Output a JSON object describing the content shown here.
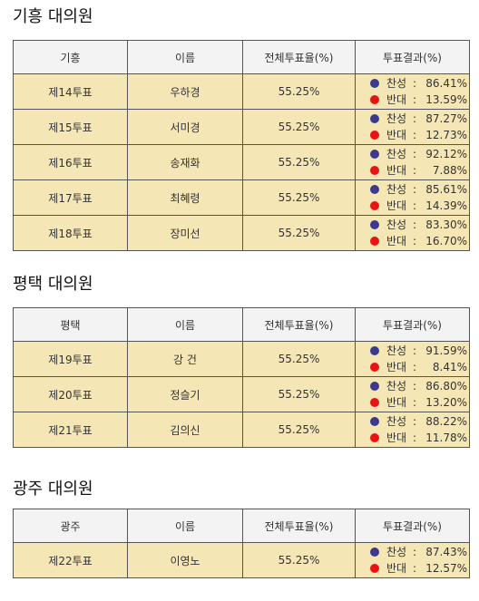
{
  "headers": [
    "",
    "이름",
    "전체투표율(%)",
    "투표결과(%)"
  ],
  "yes_label": "찬성",
  "no_label": "반대",
  "sections": [
    {
      "title": "기흥 대의원",
      "region": "기흥",
      "rows": [
        {
          "no": "제14투표",
          "name": "우하경",
          "turnout": "55.25%",
          "yes": "86.41%",
          "noval": "13.59%"
        },
        {
          "no": "제15투표",
          "name": "서미경",
          "turnout": "55.25%",
          "yes": "87.27%",
          "noval": "12.73%"
        },
        {
          "no": "제16투표",
          "name": "송재화",
          "turnout": "55.25%",
          "yes": "92.12%",
          "noval": "7.88%"
        },
        {
          "no": "제17투표",
          "name": "최혜령",
          "turnout": "55.25%",
          "yes": "85.61%",
          "noval": "14.39%"
        },
        {
          "no": "제18투표",
          "name": "장미선",
          "turnout": "55.25%",
          "yes": "83.30%",
          "noval": "16.70%"
        }
      ]
    },
    {
      "title": "평택 대의원",
      "region": "평택",
      "rows": [
        {
          "no": "제19투표",
          "name": "강 건",
          "turnout": "55.25%",
          "yes": "91.59%",
          "noval": "8.41%"
        },
        {
          "no": "제20투표",
          "name": "정슬기",
          "turnout": "55.25%",
          "yes": "86.80%",
          "noval": "13.20%"
        },
        {
          "no": "제21투표",
          "name": "김의신",
          "turnout": "55.25%",
          "yes": "88.22%",
          "noval": "11.78%"
        }
      ]
    },
    {
      "title": "광주 대의원",
      "region": "광주",
      "rows": [
        {
          "no": "제22투표",
          "name": "이영노",
          "turnout": "55.25%",
          "yes": "87.43%",
          "noval": "12.57%"
        }
      ]
    }
  ],
  "colors": {
    "row_bg": "#f5e6b5",
    "header_bg": "#f3f3f3",
    "yes_dot": "#3b3b8e",
    "no_dot": "#e81313"
  }
}
